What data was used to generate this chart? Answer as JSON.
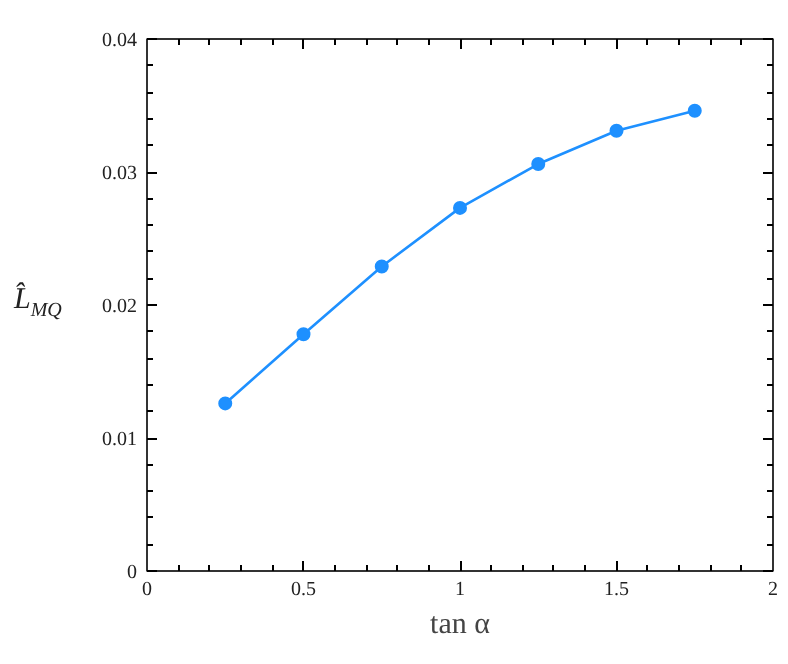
{
  "chart_data": {
    "type": "line",
    "xlabel": "tan α",
    "ylabel": "L̂$_{MQ}$",
    "x": [
      0.25,
      0.5,
      0.75,
      1,
      1.25,
      1.5,
      1.75
    ],
    "series": [
      {
        "color": "#1e90ff",
        "values": [
          0.0126,
          0.0178,
          0.0229,
          0.0273,
          0.0306,
          0.0331,
          0.0346
        ]
      }
    ],
    "xlim": [
      0,
      2
    ],
    "xticks": [
      0,
      0.5,
      1,
      1.5,
      2
    ],
    "ylim": [
      0,
      0.04
    ],
    "yticks": [
      0,
      0.01,
      0.02,
      0.03,
      0.04
    ],
    "marker": "circle",
    "grid": false
  }
}
